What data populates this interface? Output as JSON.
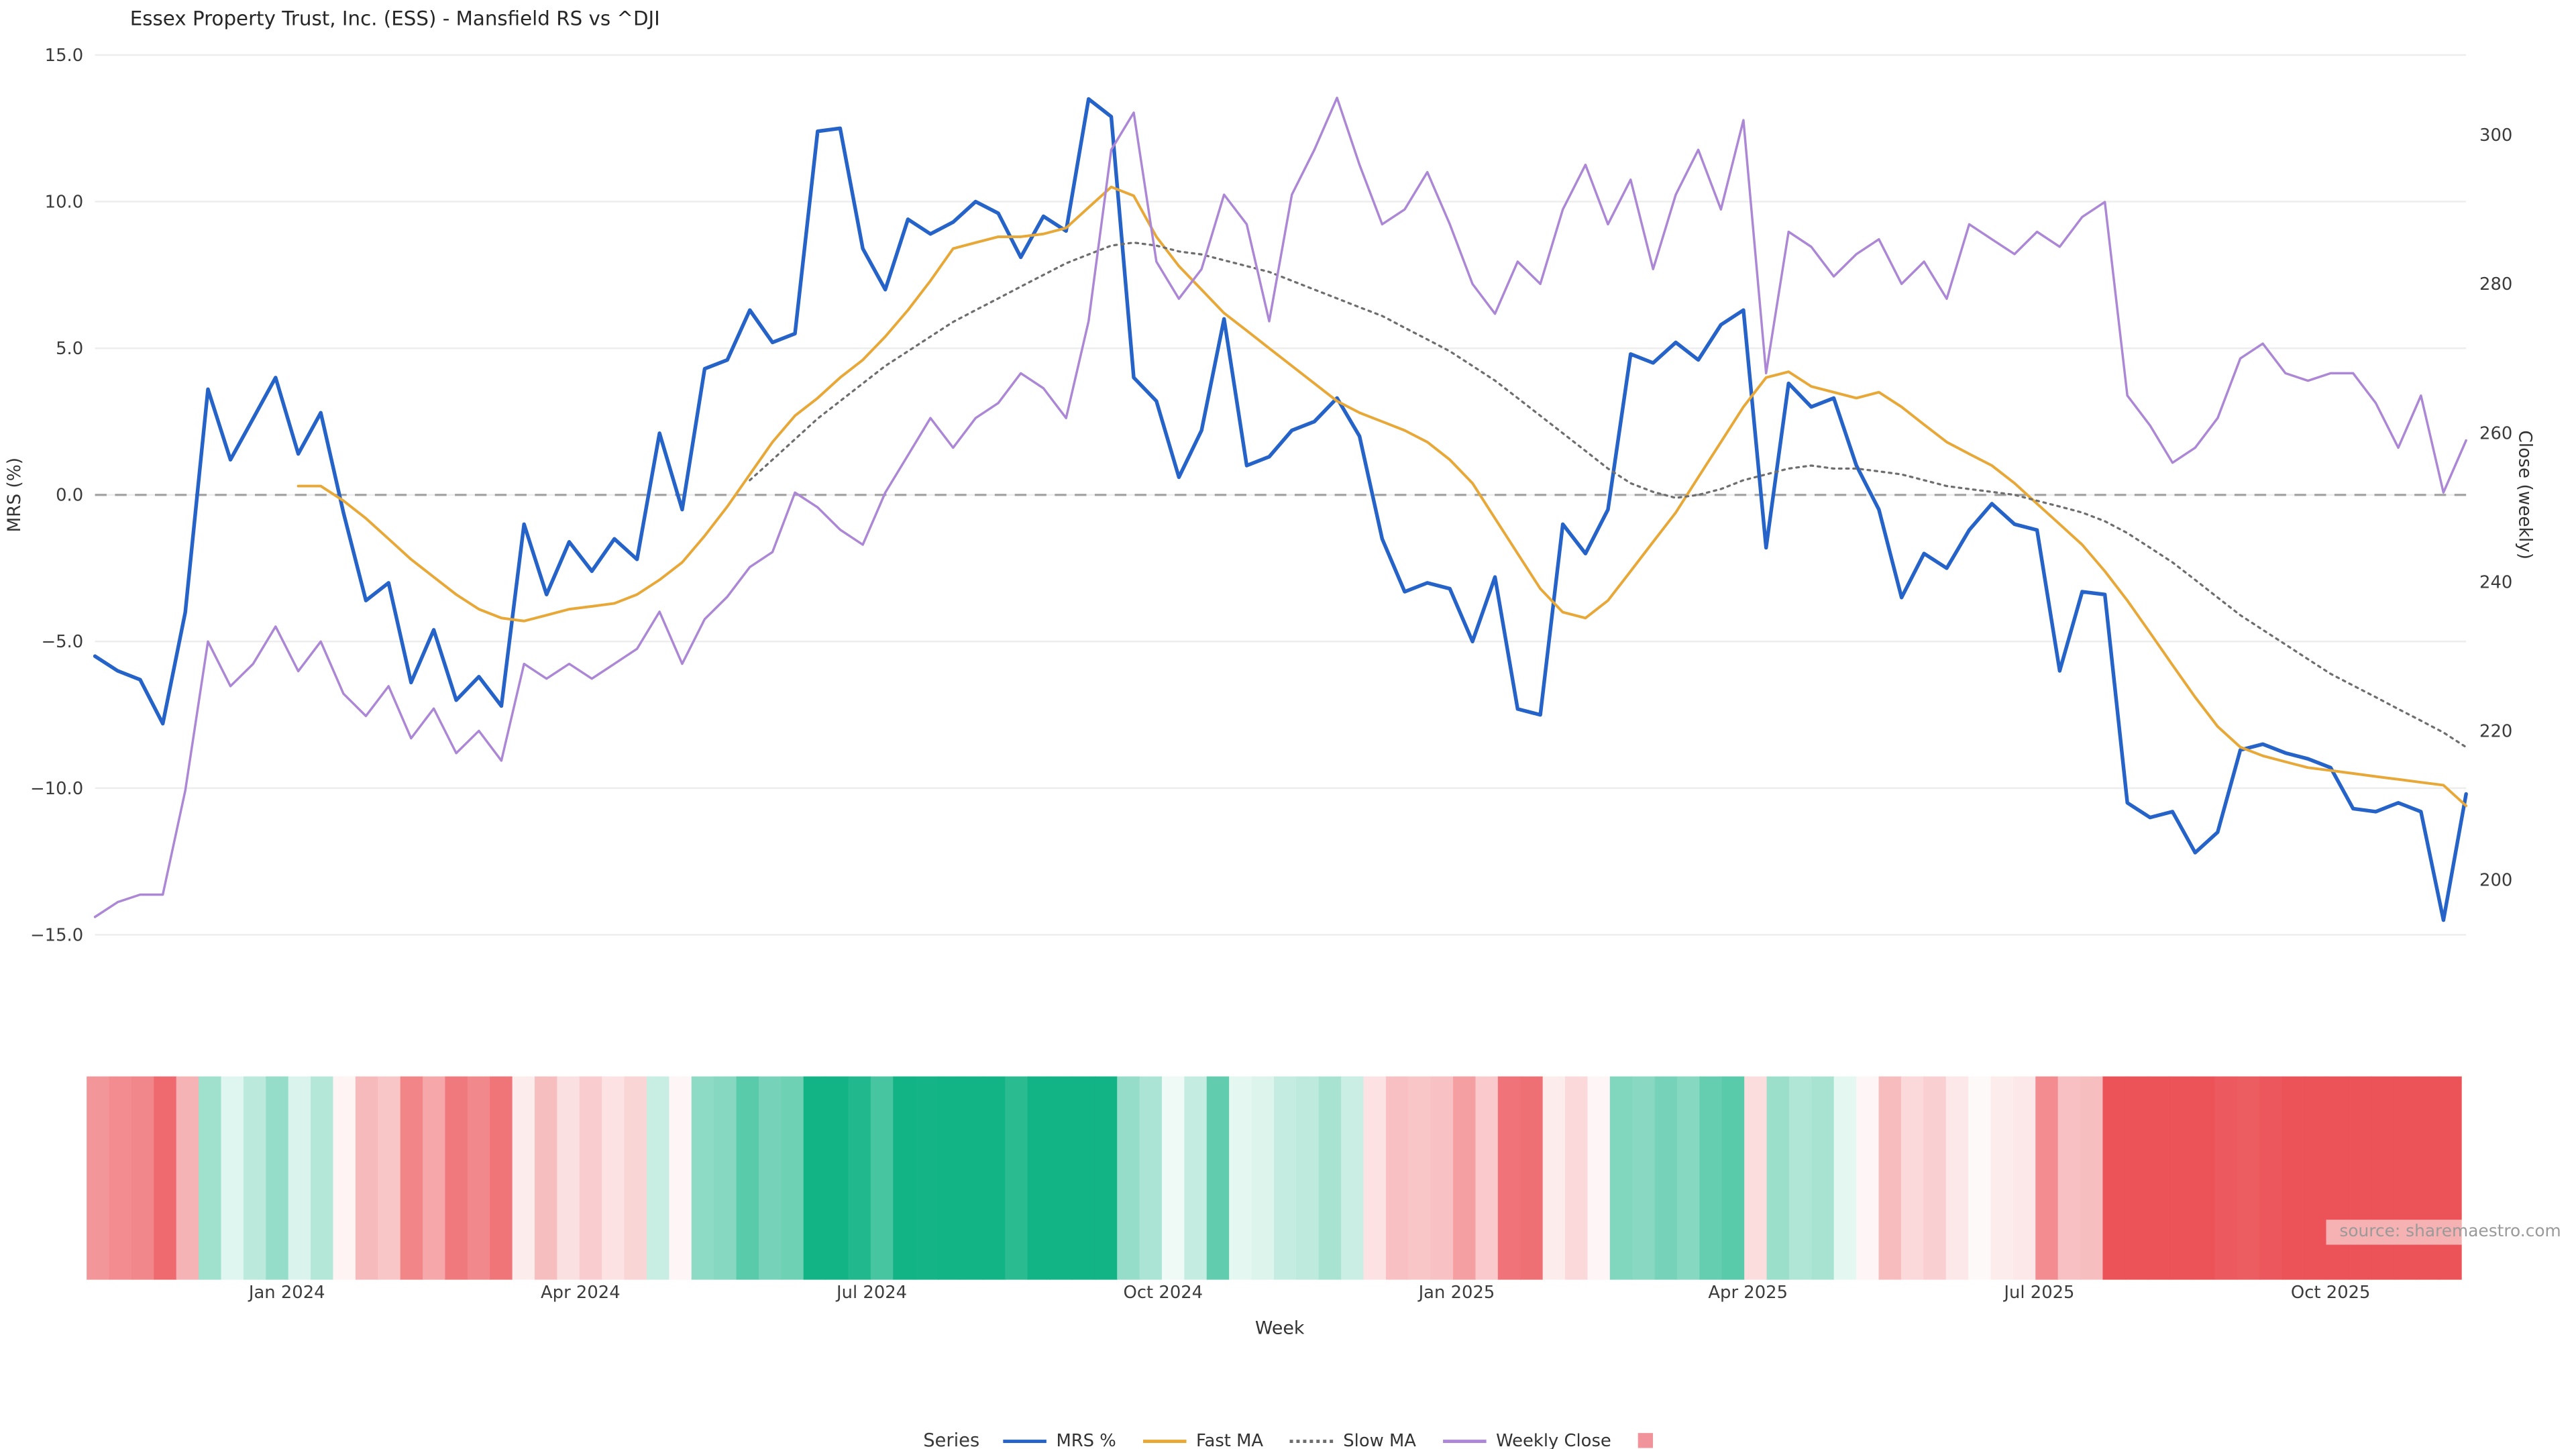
{
  "title": "Essex Property Trust, Inc. (ESS) - Mansfield RS vs ^DJI",
  "source_note": "source: sharemaestro.com",
  "legend": {
    "title": "Series",
    "items": [
      {
        "label": "MRS %",
        "swatch": "line",
        "color": "#2563c8",
        "weight": 2.6
      },
      {
        "label": "Fast MA",
        "swatch": "line",
        "color": "#e8a838",
        "weight": 2
      },
      {
        "label": "Slow MA",
        "swatch": "dotted",
        "color": "#6e6e6e",
        "weight": 2
      },
      {
        "label": "Weekly Close",
        "swatch": "line",
        "color": "#ab87d6",
        "weight": 2
      },
      {
        "label": "",
        "swatch": "square",
        "color": "#f0939b"
      }
    ]
  },
  "chart_data": {
    "type": "line",
    "title": "Essex Property Trust, Inc. (ESS) - Mansfield RS vs ^DJI",
    "xlabel": "Week",
    "weeks_total": 106,
    "left_axis": {
      "label": "MRS (%)",
      "range": [
        -15,
        15
      ],
      "ticks": [
        {
          "value": 15,
          "label": "15.0"
        },
        {
          "value": 10,
          "label": "10.0"
        },
        {
          "value": 5,
          "label": "5.0"
        },
        {
          "value": 0,
          "label": "0.0"
        },
        {
          "value": -5,
          "label": "−5.0"
        },
        {
          "value": -10,
          "label": "−10.0"
        },
        {
          "value": -15,
          "label": "−15.0"
        }
      ]
    },
    "right_axis": {
      "label": "Close (weekly)",
      "range": [
        195,
        305
      ],
      "ticks": [
        {
          "value": 300,
          "label": "300"
        },
        {
          "value": 280,
          "label": "280"
        },
        {
          "value": 260,
          "label": "260"
        },
        {
          "value": 240,
          "label": "240"
        },
        {
          "value": 220,
          "label": "220"
        },
        {
          "value": 200,
          "label": "200"
        }
      ]
    },
    "x_ticks": [
      {
        "week": 8.5,
        "label": "Jan 2024"
      },
      {
        "week": 21.5,
        "label": "Apr 2024"
      },
      {
        "week": 34.4,
        "label": "Jul 2024"
      },
      {
        "week": 47.3,
        "label": "Oct 2024"
      },
      {
        "week": 60.3,
        "label": "Jan 2025"
      },
      {
        "week": 73.2,
        "label": "Apr 2025"
      },
      {
        "week": 86.1,
        "label": "Jul 2025"
      },
      {
        "week": 99.0,
        "label": "Oct 2025"
      }
    ],
    "zero_line": 0,
    "grid": true,
    "legend_position": "bottom-center",
    "series": [
      {
        "name": "MRS %",
        "axis": "left",
        "color": "#2563c8",
        "width": 2.2,
        "dash": "",
        "values": [
          -5.5,
          -6,
          -6.3,
          -7.8,
          -4,
          3.6,
          1.2,
          2.6,
          4,
          1.4,
          2.8,
          -0.6,
          -3.6,
          -3,
          -6.4,
          -4.6,
          -7,
          -6.2,
          -7.2,
          -1,
          -3.4,
          -1.6,
          -2.6,
          -1.5,
          -2.2,
          2.1,
          -0.5,
          4.3,
          4.6,
          6.3,
          5.2,
          5.5,
          12.4,
          12.5,
          8.4,
          7,
          9.4,
          8.9,
          9.3,
          10,
          9.6,
          8.1,
          9.5,
          9,
          13.5,
          12.9,
          4,
          3.2,
          0.6,
          2.2,
          6,
          1,
          1.3,
          2.2,
          2.5,
          3.3,
          2,
          -1.5,
          -3.3,
          -3,
          -3.2,
          -5,
          -2.8,
          -7.3,
          -7.5,
          -1,
          -2,
          -0.5,
          4.8,
          4.5,
          5.2,
          4.6,
          5.8,
          6.3,
          -1.8,
          3.8,
          3,
          3.3,
          1,
          -0.5,
          -3.5,
          -2,
          -2.5,
          -1.2,
          -0.3,
          -1,
          -1.2,
          -6,
          -3.3,
          -3.4,
          -10.5,
          -11,
          -10.8,
          -12.2,
          -11.5,
          -8.7,
          -8.5,
          -8.8,
          -9,
          -9.3,
          -10.7,
          -10.8,
          -10.5,
          -10.8,
          -14.5,
          -10.2
        ]
      },
      {
        "name": "Fast MA",
        "axis": "left",
        "color": "#e8a838",
        "width": 1.6,
        "dash": "",
        "values": [
          null,
          null,
          null,
          null,
          null,
          null,
          null,
          null,
          null,
          0.3,
          0.3,
          -0.2,
          -0.8,
          -1.5,
          -2.2,
          -2.8,
          -3.4,
          -3.9,
          -4.2,
          -4.3,
          -4.1,
          -3.9,
          -3.8,
          -3.7,
          -3.4,
          -2.9,
          -2.3,
          -1.4,
          -0.4,
          0.7,
          1.8,
          2.7,
          3.3,
          4,
          4.6,
          5.4,
          6.3,
          7.3,
          8.4,
          8.6,
          8.8,
          8.8,
          8.9,
          9.1,
          9.8,
          10.5,
          10.2,
          8.8,
          7.8,
          7,
          6.2,
          5.6,
          5,
          4.4,
          3.8,
          3.2,
          2.8,
          2.5,
          2.2,
          1.8,
          1.2,
          0.4,
          -0.8,
          -2,
          -3.2,
          -4,
          -4.2,
          -3.6,
          -2.6,
          -1.6,
          -0.6,
          0.6,
          1.8,
          3,
          4,
          4.2,
          3.7,
          3.5,
          3.3,
          3.5,
          3,
          2.4,
          1.8,
          1.4,
          1,
          0.4,
          -0.3,
          -1,
          -1.7,
          -2.6,
          -3.6,
          -4.7,
          -5.8,
          -6.9,
          -7.9,
          -8.6,
          -8.9,
          -9.1,
          -9.3,
          -9.4,
          -9.5,
          -9.6,
          -9.7,
          -9.8,
          -9.9,
          -10.6
        ]
      },
      {
        "name": "Slow MA",
        "axis": "left",
        "color": "#6e6e6e",
        "width": 1.3,
        "dash": "1.5 2.8",
        "values": [
          null,
          null,
          null,
          null,
          null,
          null,
          null,
          null,
          null,
          null,
          null,
          null,
          null,
          null,
          null,
          null,
          null,
          null,
          null,
          null,
          null,
          null,
          null,
          null,
          null,
          null,
          null,
          null,
          null,
          0.5,
          1.2,
          1.9,
          2.6,
          3.2,
          3.8,
          4.4,
          4.9,
          5.4,
          5.9,
          6.3,
          6.7,
          7.1,
          7.5,
          7.9,
          8.2,
          8.5,
          8.6,
          8.5,
          8.3,
          8.2,
          8,
          7.8,
          7.6,
          7.3,
          7,
          6.7,
          6.4,
          6.1,
          5.7,
          5.3,
          4.9,
          4.4,
          3.9,
          3.3,
          2.7,
          2.1,
          1.5,
          0.9,
          0.4,
          0.1,
          -0.1,
          0,
          0.2,
          0.5,
          0.7,
          0.9,
          1,
          0.9,
          0.9,
          0.8,
          0.7,
          0.5,
          0.3,
          0.2,
          0.1,
          0,
          -0.2,
          -0.4,
          -0.6,
          -0.9,
          -1.3,
          -1.8,
          -2.3,
          -2.9,
          -3.5,
          -4.1,
          -4.6,
          -5.1,
          -5.6,
          -6.1,
          -6.5,
          -6.9,
          -7.3,
          -7.7,
          -8.1,
          -8.6
        ]
      },
      {
        "name": "Weekly Close",
        "axis": "right",
        "color": "#ab87d6",
        "width": 1.4,
        "dash": "",
        "values": [
          195,
          197,
          198,
          198,
          212,
          232,
          226,
          229,
          234,
          228,
          232,
          225,
          222,
          226,
          219,
          223,
          217,
          220,
          216,
          229,
          227,
          229,
          227,
          229,
          231,
          236,
          229,
          235,
          238,
          242,
          244,
          252,
          250,
          247,
          245,
          252,
          257,
          262,
          258,
          262,
          264,
          268,
          266,
          262,
          275,
          298,
          303,
          283,
          278,
          282,
          292,
          288,
          275,
          292,
          298,
          305,
          296,
          288,
          290,
          295,
          288,
          280,
          276,
          283,
          280,
          290,
          296,
          288,
          294,
          282,
          292,
          298,
          290,
          302,
          268,
          287,
          285,
          281,
          284,
          286,
          280,
          283,
          278,
          288,
          286,
          284,
          287,
          285,
          289,
          291,
          265,
          261,
          256,
          258,
          262,
          270,
          272,
          268,
          267,
          268,
          268,
          264,
          258,
          265,
          252,
          259
        ]
      }
    ],
    "heatmap": {
      "based_on": "MRS %",
      "negative_color": "#eb5358",
      "positive_color": "#12b385",
      "zero_color": "#ffffff",
      "scale_max": 9
    }
  }
}
